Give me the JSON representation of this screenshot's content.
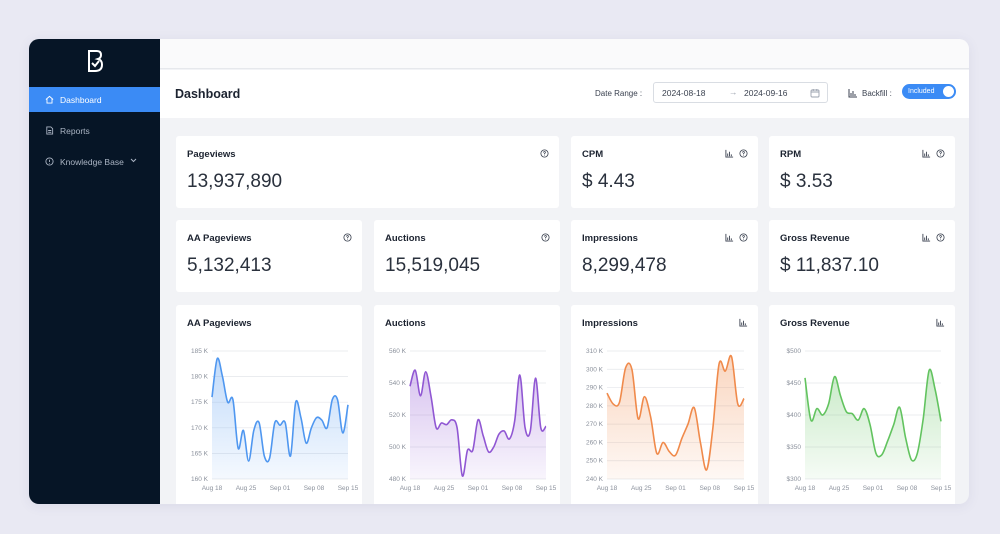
{
  "sidebar": {
    "items": [
      {
        "label": "Dashboard",
        "active": true,
        "icon": "home-icon"
      },
      {
        "label": "Reports",
        "active": false,
        "icon": "document-icon"
      },
      {
        "label": "Knowledge Base",
        "active": false,
        "icon": "help-circle-icon"
      }
    ]
  },
  "header": {
    "title": "Dashboard",
    "date_range_label": "Date Range :",
    "start_date": "2024-08-18",
    "end_date": "2024-09-16",
    "backfill_label": "Backfill :",
    "backfill_toggle": "Included"
  },
  "colors": {
    "accent": "#3b8bf5",
    "sidebar_bg": "#061526",
    "aa_pageviews": "#4f97f0",
    "auctions": "#9057d3",
    "impressions": "#f08a4b",
    "gross_revenue": "#62c35f"
  },
  "metrics": {
    "pageviews": {
      "label": "Pageviews",
      "value": "13,937,890"
    },
    "cpm": {
      "label": "CPM",
      "value": "$ 4.43"
    },
    "rpm": {
      "label": "RPM",
      "value": "$ 3.53"
    },
    "aa_pageviews": {
      "label": "AA Pageviews",
      "value": "5,132,413"
    },
    "auctions": {
      "label": "Auctions",
      "value": "15,519,045"
    },
    "impressions": {
      "label": "Impressions",
      "value": "8,299,478"
    },
    "gross_revenue": {
      "label": "Gross Revenue",
      "value": "$ 11,837.10"
    }
  },
  "chart_data": [
    {
      "type": "area",
      "title": "AA Pageviews",
      "color": "#4f97f0",
      "yticks": [
        "185 K",
        "180 K",
        "175 K",
        "170 K",
        "165 K",
        "160 K"
      ],
      "ylim": [
        160000,
        185000
      ],
      "xticks": [
        "Aug 18",
        "Aug 25",
        "Sep 01",
        "Sep 08",
        "Sep 15"
      ],
      "values": [
        176000,
        183500,
        180000,
        175000,
        175500,
        166000,
        169500,
        163500,
        169500,
        171000,
        164500,
        164000,
        171000,
        170500,
        171000,
        164500,
        175000,
        172000,
        167000,
        170000,
        172000,
        171500,
        170000,
        175500,
        175500,
        169000,
        174500
      ]
    },
    {
      "type": "area",
      "title": "Auctions",
      "color": "#9057d3",
      "yticks": [
        "560 K",
        "540 K",
        "520 K",
        "500 K",
        "480 K"
      ],
      "ylim": [
        480000,
        560000
      ],
      "xticks": [
        "Aug 18",
        "Aug 25",
        "Sep 01",
        "Sep 08",
        "Sep 15"
      ],
      "values": [
        538000,
        548000,
        532000,
        547000,
        532000,
        512000,
        515000,
        514000,
        517000,
        512000,
        482000,
        498000,
        498000,
        517000,
        507000,
        497000,
        500000,
        508000,
        510000,
        505000,
        516000,
        545000,
        512000,
        510000,
        543000,
        512000,
        513000
      ]
    },
    {
      "type": "area",
      "title": "Impressions",
      "color": "#f08a4b",
      "yticks": [
        "310 K",
        "300 K",
        "290 K",
        "280 K",
        "270 K",
        "260 K",
        "250 K",
        "240 K"
      ],
      "ylim": [
        240000,
        310000
      ],
      "xticks": [
        "Aug 18",
        "Aug 25",
        "Sep 01",
        "Sep 08",
        "Sep 15"
      ],
      "values": [
        287000,
        281000,
        282000,
        301000,
        300000,
        273000,
        285000,
        274000,
        254000,
        260000,
        255000,
        253000,
        262000,
        270000,
        279000,
        260000,
        245000,
        268000,
        303000,
        299000,
        307000,
        281000,
        284000
      ]
    },
    {
      "type": "area",
      "title": "Gross Revenue",
      "color": "#62c35f",
      "yticks": [
        "$500",
        "$450",
        "$400",
        "$350",
        "$300"
      ],
      "ylim": [
        300,
        500
      ],
      "xticks": [
        "Aug 18",
        "Aug 25",
        "Sep 01",
        "Sep 08",
        "Sep 15"
      ],
      "values": [
        458,
        392,
        410,
        400,
        418,
        460,
        430,
        405,
        402,
        392,
        410,
        385,
        340,
        338,
        360,
        385,
        412,
        365,
        330,
        340,
        395,
        470,
        440,
        390
      ]
    }
  ]
}
